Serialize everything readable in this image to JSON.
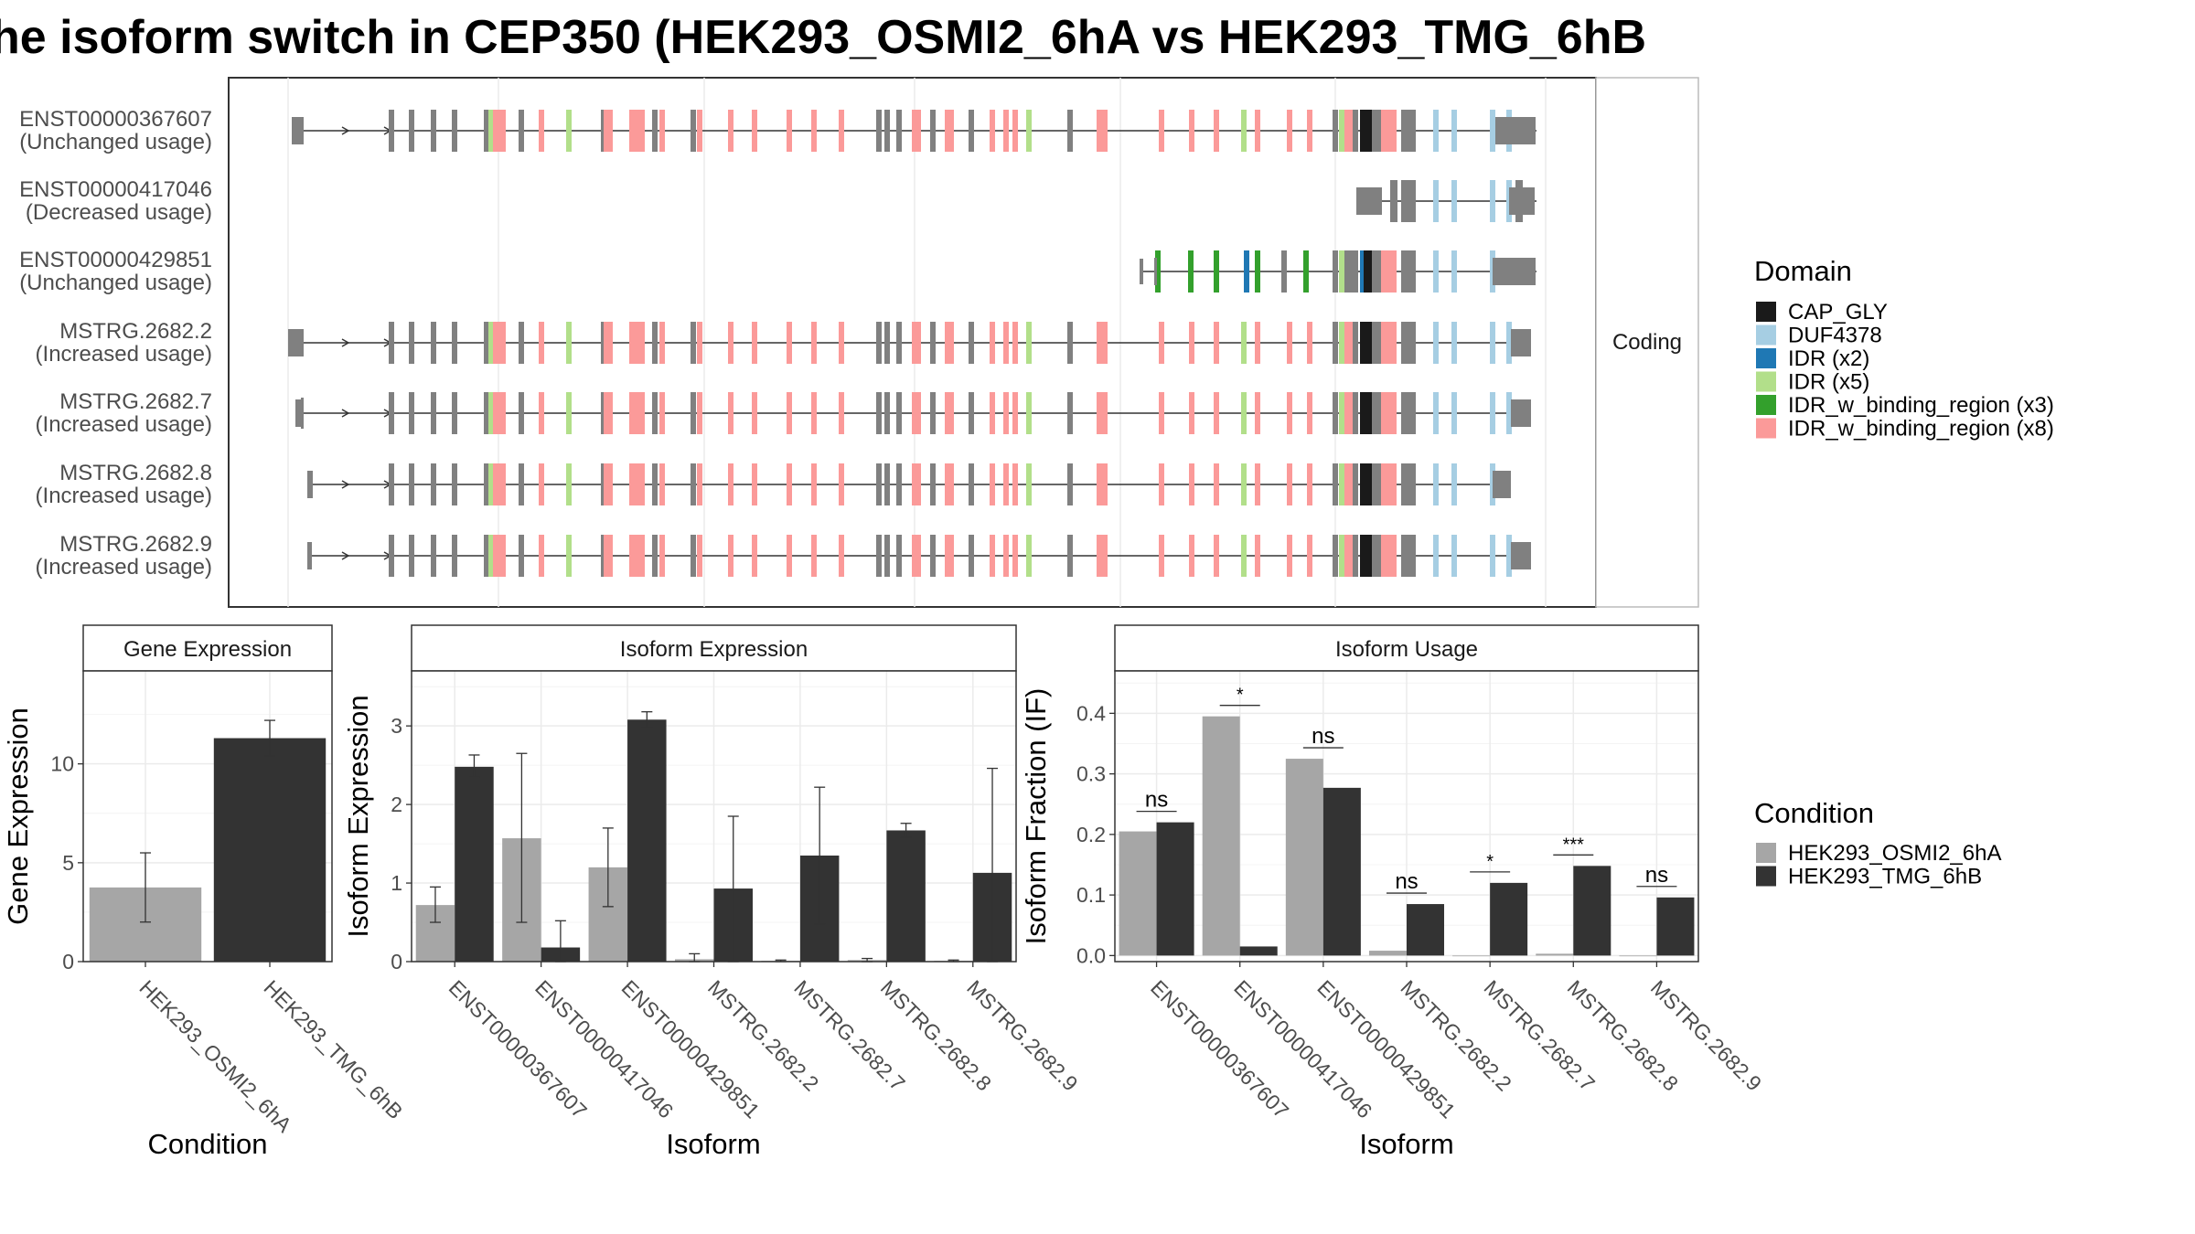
{
  "title": "he isoform switch in CEP350 (HEK293_OSMI2_6hA vs HEK293_TMG_6hB",
  "colors": {
    "cond1": "#a6a6a6",
    "cond2": "#333333",
    "intron": "#333333",
    "exon_base": "#808080"
  },
  "transcript_panel": {
    "facet_label": "Coding",
    "transcripts": [
      {
        "id": "ENST00000367607",
        "status": "(Unchanged usage)"
      },
      {
        "id": "ENST00000417046",
        "status": "(Decreased usage)"
      },
      {
        "id": "ENST00000429851",
        "status": "(Unchanged usage)"
      },
      {
        "id": "MSTRG.2682.2",
        "status": "(Increased usage)"
      },
      {
        "id": "MSTRG.2682.7",
        "status": "(Increased usage)"
      },
      {
        "id": "MSTRG.2682.8",
        "status": "(Increased usage)"
      },
      {
        "id": "MSTRG.2682.9",
        "status": "(Increased usage)"
      }
    ]
  },
  "domain_legend": {
    "title": "Domain",
    "items": [
      {
        "label": "CAP_GLY",
        "color": "#1a1a1a"
      },
      {
        "label": "DUF4378",
        "color": "#a6cee3"
      },
      {
        "label": "IDR (x2)",
        "color": "#1f78b4"
      },
      {
        "label": "IDR (x5)",
        "color": "#b2df8a"
      },
      {
        "label": "IDR_w_binding_region (x3)",
        "color": "#33a02c"
      },
      {
        "label": "IDR_w_binding_region (x8)",
        "color": "#fb9a99"
      }
    ]
  },
  "condition_legend": {
    "title": "Condition",
    "items": [
      {
        "label": "HEK293_OSMI2_6hA",
        "color": "#a6a6a6"
      },
      {
        "label": "HEK293_TMG_6hB",
        "color": "#333333"
      }
    ]
  },
  "chart_data": [
    {
      "type": "bar",
      "strip_title": "Gene Expression",
      "xlabel": "Condition",
      "ylabel": "Gene Expression",
      "categories": [
        "HEK293_OSMI2_6hA",
        "HEK293_TMG_6hB"
      ],
      "values": [
        3.75,
        11.3
      ],
      "errors": [
        [
          2.0,
          5.5
        ],
        [
          10.4,
          12.2
        ]
      ],
      "ylim": [
        0,
        14.7
      ],
      "yticks": [
        0,
        5,
        10
      ],
      "grid": true
    },
    {
      "type": "bar",
      "strip_title": "Isoform Expression",
      "xlabel": "Isoform",
      "ylabel": "Isoform Expression",
      "categories": [
        "ENST00000367607",
        "ENST00000417046",
        "ENST00000429851",
        "MSTRG.2682.2",
        "MSTRG.2682.7",
        "MSTRG.2682.8",
        "MSTRG.2682.9"
      ],
      "series": [
        {
          "name": "HEK293_OSMI2_6hA",
          "values": [
            0.72,
            1.57,
            1.2,
            0.03,
            0.01,
            0.02,
            0.01
          ],
          "errors": [
            [
              0.5,
              0.95
            ],
            [
              0.5,
              2.65
            ],
            [
              0.7,
              1.7
            ],
            [
              0.0,
              0.1
            ],
            [
              0.0,
              0.02
            ],
            [
              0.0,
              0.04
            ],
            [
              0.0,
              0.02
            ]
          ]
        },
        {
          "name": "HEK293_TMG_6hB",
          "values": [
            2.48,
            0.18,
            3.08,
            0.93,
            1.35,
            1.67,
            1.13
          ],
          "errors": [
            [
              2.35,
              2.63
            ],
            [
              0.0,
              0.52
            ],
            [
              2.98,
              3.18
            ],
            [
              0.0,
              1.85
            ],
            [
              0.48,
              2.22
            ],
            [
              1.58,
              1.76
            ],
            [
              0.0,
              2.46
            ]
          ]
        }
      ],
      "ylim": [
        0,
        3.7
      ],
      "yticks": [
        0,
        1,
        2,
        3
      ],
      "grid": true
    },
    {
      "type": "bar",
      "strip_title": "Isoform Usage",
      "xlabel": "Isoform",
      "ylabel": "Isoform Fraction (IF)",
      "categories": [
        "ENST00000367607",
        "ENST00000417046",
        "ENST00000429851",
        "MSTRG.2682.2",
        "MSTRG.2682.7",
        "MSTRG.2682.8",
        "MSTRG.2682.9"
      ],
      "series": [
        {
          "name": "HEK293_OSMI2_6hA",
          "values": [
            0.205,
            0.395,
            0.325,
            0.008,
            0.0,
            0.003,
            0.0
          ]
        },
        {
          "name": "HEK293_TMG_6hB",
          "values": [
            0.22,
            0.015,
            0.277,
            0.085,
            0.12,
            0.148,
            0.096
          ]
        }
      ],
      "significance": [
        "ns",
        "*",
        "ns",
        "ns",
        "*",
        "***",
        "ns"
      ],
      "ylim": [
        -0.01,
        0.47
      ],
      "yticks": [
        0.0,
        0.1,
        0.2,
        0.3,
        0.4
      ],
      "ytick_labels": [
        "0.0",
        "0.1",
        "0.2",
        "0.3",
        "0.4"
      ],
      "grid": true
    }
  ]
}
